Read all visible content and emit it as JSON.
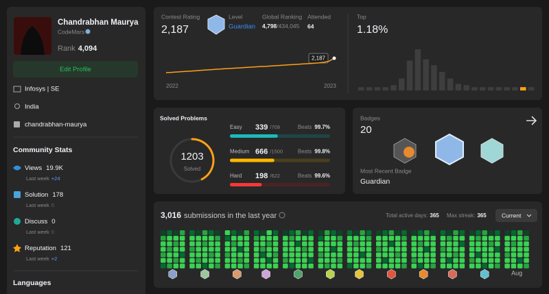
{
  "profile": {
    "name": "Chandrabhan Maurya",
    "org": "CodeMars",
    "rank_label": "Rank",
    "rank": "4,094",
    "edit": "Edit Profile",
    "company": "Infosys | SE",
    "location": "India",
    "handle": "chandrabhan-maurya"
  },
  "community": {
    "title": "Community Stats",
    "last_week_label": "Last week",
    "items": [
      {
        "label": "Views",
        "value": "19.9K",
        "last_week": "+24"
      },
      {
        "label": "Solution",
        "value": "178",
        "last_week": "0"
      },
      {
        "label": "Discuss",
        "value": "0",
        "last_week": "0"
      },
      {
        "label": "Reputation",
        "value": "121",
        "last_week": "+2"
      }
    ]
  },
  "languages_title": "Languages",
  "contest": {
    "rating_label": "Contest Rating",
    "rating": "2,187",
    "level_label": "Level",
    "level": "Guardian",
    "global_label": "Global Ranking",
    "global_rank": "4,798",
    "separator": "/",
    "global_total": "434,045",
    "attended_label": "Attended",
    "attended": 64,
    "history": [
      1500,
      1512,
      1530,
      1545,
      1560,
      1575,
      1590,
      1610,
      1625,
      1640,
      1660,
      1672,
      1690,
      1700,
      1715,
      1730,
      1745,
      1760,
      1775,
      1790,
      1800,
      1815,
      1830,
      1845,
      1860,
      1875,
      1890,
      1905,
      1920,
      1935,
      1950,
      1970,
      2000,
      2050,
      2187
    ],
    "color": "#ffa116",
    "start_year": "2022",
    "end_year": "2023",
    "top_label": "Top",
    "top": "1.18%",
    "distribution": [
      5,
      5,
      5,
      5,
      8,
      18,
      45,
      62,
      47,
      38,
      28,
      18,
      10,
      8,
      5,
      5,
      5,
      5,
      5,
      5,
      5,
      5
    ],
    "highlight": 20,
    "bar_color": "#3e3e3e"
  },
  "solved": {
    "title": "Solved Problems",
    "total": 1203,
    "label": "Solved",
    "beats_label": "Beats",
    "separator": "/",
    "levels": [
      {
        "name": "Easy",
        "solved": 339,
        "total": 709,
        "beats": "99.7%",
        "color": "#1cbaba",
        "track": "#1d4545"
      },
      {
        "name": "Medium",
        "solved": 666,
        "total": 1500,
        "beats": "99.8%",
        "color": "#ffb700",
        "track": "#4a3f1c"
      },
      {
        "name": "Hard",
        "solved": 198,
        "total": 622,
        "beats": "99.6%",
        "color": "#f63737",
        "track": "#4a2222"
      }
    ]
  },
  "badges": {
    "title": "Badges",
    "count": "20",
    "recent_label": "Most Recent Badge",
    "recent": "Guardian"
  },
  "heatmap": {
    "count": "3,016",
    "text": "submissions in the last year",
    "active_label": "Total active days:",
    "active": 365,
    "streak_label": "Max streak:",
    "streak": 365,
    "dropdown": "Current",
    "last_month": "Aug",
    "colors": [
      "#393939",
      "#0e4429",
      "#006d32",
      "#26a641",
      "#39d353"
    ],
    "months": [
      [
        [
          1,
          3,
          4,
          4,
          3,
          4,
          2
        ],
        [
          2,
          4,
          4,
          3,
          4,
          4,
          3
        ],
        [
          1,
          4,
          3,
          4,
          4,
          3,
          4
        ],
        [
          3,
          4,
          4,
          4,
          2,
          4,
          4
        ]
      ],
      [
        [
          2,
          4,
          4,
          3,
          4,
          4,
          4
        ],
        [
          1,
          4,
          4,
          4,
          4,
          3,
          4
        ],
        [
          3,
          4,
          3,
          4,
          4,
          4,
          2
        ],
        [
          2,
          4,
          4,
          4,
          3,
          4,
          4
        ],
        [
          1,
          3,
          4,
          4,
          4,
          4,
          3
        ]
      ],
      [
        [
          4,
          2,
          4,
          4,
          3,
          4,
          4
        ],
        [
          2,
          4,
          3,
          4,
          4,
          4,
          4
        ],
        [
          1,
          4,
          4,
          2,
          4,
          3,
          4
        ],
        [
          3,
          4,
          4,
          4,
          4,
          4,
          3
        ]
      ],
      [
        [
          2,
          3,
          4,
          4,
          4,
          4,
          4
        ],
        [
          1,
          4,
          4,
          3,
          2,
          4,
          4
        ],
        [
          4,
          4,
          3,
          4,
          4,
          2,
          4
        ],
        [
          2,
          4,
          4,
          4,
          3,
          4,
          4
        ]
      ],
      [
        [
          1,
          4,
          4,
          4,
          4,
          3,
          4
        ],
        [
          2,
          3,
          4,
          4,
          4,
          4,
          2
        ],
        [
          3,
          4,
          2,
          4,
          4,
          4,
          4
        ],
        [
          1,
          4,
          4,
          3,
          4,
          4,
          4
        ],
        [
          2,
          4,
          4,
          4,
          4,
          2,
          4
        ]
      ],
      [
        [
          1,
          2,
          4,
          4,
          3,
          4,
          4
        ],
        [
          3,
          4,
          4,
          4,
          4,
          4,
          3
        ],
        [
          2,
          4,
          4,
          2,
          4,
          4,
          4
        ],
        [
          1,
          3,
          4,
          4,
          4,
          3,
          4
        ]
      ],
      [
        [
          2,
          4,
          4,
          4,
          4,
          4,
          2
        ],
        [
          1,
          4,
          3,
          4,
          4,
          4,
          4
        ],
        [
          3,
          4,
          4,
          4,
          2,
          4,
          4
        ],
        [
          2,
          3,
          4,
          4,
          4,
          4,
          3
        ]
      ],
      [
        [
          1,
          4,
          4,
          3,
          4,
          4,
          4
        ],
        [
          2,
          4,
          4,
          4,
          4,
          2,
          4
        ],
        [
          3,
          4,
          2,
          4,
          4,
          4,
          4
        ],
        [
          1,
          4,
          4,
          4,
          3,
          4,
          4
        ],
        [
          2,
          3,
          4,
          4,
          4,
          4,
          3
        ]
      ],
      [
        [
          1,
          4,
          4,
          4,
          4,
          3,
          4
        ],
        [
          2,
          4,
          3,
          4,
          4,
          4,
          2
        ],
        [
          3,
          4,
          4,
          2,
          4,
          4,
          4
        ],
        [
          1,
          4,
          4,
          4,
          4,
          4,
          3
        ]
      ],
      [
        [
          2,
          4,
          4,
          3,
          4,
          4,
          4
        ],
        [
          1,
          3,
          4,
          4,
          4,
          2,
          4
        ],
        [
          3,
          4,
          4,
          4,
          3,
          4,
          4
        ],
        [
          2,
          4,
          2,
          4,
          4,
          4,
          4
        ]
      ],
      [
        [
          1,
          4,
          4,
          4,
          4,
          3,
          4
        ],
        [
          2,
          3,
          4,
          4,
          2,
          4,
          4
        ],
        [
          3,
          4,
          4,
          4,
          4,
          4,
          2
        ],
        [
          1,
          4,
          3,
          4,
          4,
          4,
          4
        ],
        [
          2,
          4,
          4,
          2,
          4,
          4,
          3
        ]
      ],
      [
        [
          1,
          4,
          4,
          4,
          3,
          4,
          4
        ],
        [
          2,
          4,
          3,
          4,
          4,
          4,
          4
        ],
        [
          3,
          4,
          4,
          4,
          4,
          2,
          4
        ],
        [
          1,
          3,
          4,
          4,
          4,
          4,
          3
        ]
      ]
    ]
  }
}
